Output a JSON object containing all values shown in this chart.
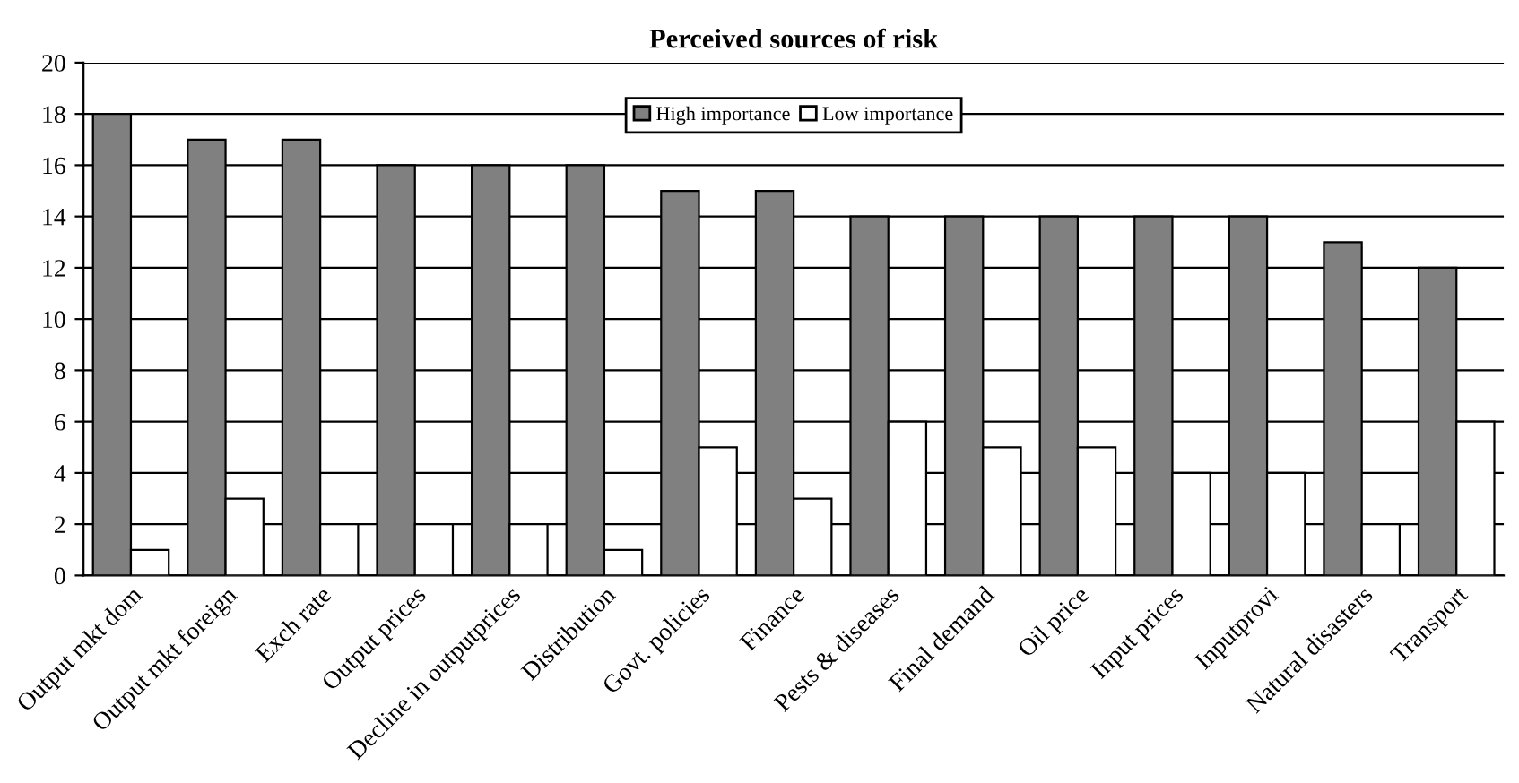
{
  "chart_data": {
    "type": "bar",
    "title": "Perceived sources of risk",
    "categories": [
      "Output mkt dom",
      "Output mkt foreign",
      "Exch rate",
      "Output prices",
      "Decline in outputprices",
      "Distribution",
      "Govt. policies",
      "Finance",
      "Pests & diseases",
      "Final demand",
      "Oil price",
      "Input prices",
      "Inputprovi",
      "Natural disasters",
      "Transport"
    ],
    "series": [
      {
        "name": "High importance",
        "color": "#808080",
        "values": [
          18,
          17,
          17,
          16,
          16,
          16,
          15,
          15,
          14,
          14,
          14,
          14,
          14,
          13,
          12
        ]
      },
      {
        "name": "Low importance",
        "color": "#ffffff",
        "values": [
          1,
          3,
          2,
          2,
          2,
          1,
          5,
          3,
          6,
          5,
          5,
          4,
          4,
          2,
          6
        ]
      }
    ],
    "ylim": [
      0,
      20
    ],
    "yticks": [
      0,
      2,
      4,
      6,
      8,
      10,
      12,
      14,
      16,
      18,
      20
    ],
    "grid": "y",
    "legend": "top"
  }
}
